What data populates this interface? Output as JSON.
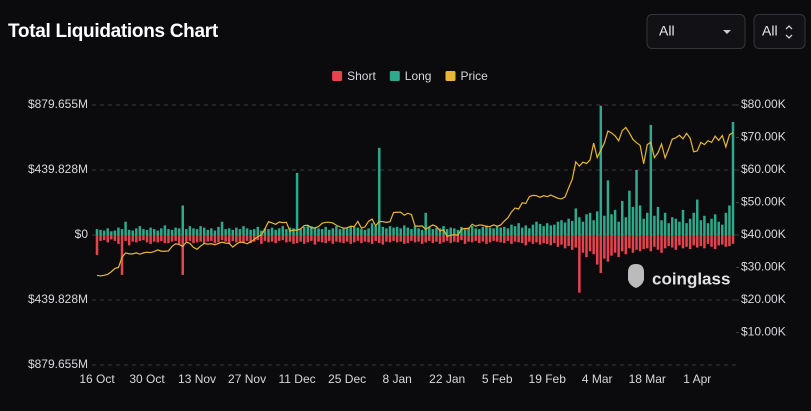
{
  "controls": [
    "All",
    "All"
  ],
  "watermark": "coinglass",
  "chart_data": {
    "type": "bar",
    "title": "Total Liquidations Chart",
    "categories": [
      "16 Oct",
      null,
      null,
      null,
      null,
      null,
      null,
      null,
      null,
      null,
      null,
      null,
      null,
      null,
      "30 Oct",
      null,
      null,
      null,
      null,
      null,
      null,
      null,
      null,
      null,
      null,
      null,
      null,
      null,
      "13 Nov",
      null,
      null,
      null,
      null,
      null,
      null,
      null,
      null,
      null,
      null,
      null,
      null,
      null,
      "27 Nov",
      null,
      null,
      null,
      null,
      null,
      null,
      null,
      null,
      null,
      null,
      null,
      null,
      null,
      "11 Dec",
      null,
      null,
      null,
      null,
      null,
      null,
      null,
      null,
      null,
      null,
      null,
      null,
      null,
      "25 Dec",
      null,
      null,
      null,
      null,
      null,
      null,
      null,
      null,
      null,
      null,
      null,
      null,
      null,
      "8 Jan",
      null,
      null,
      null,
      null,
      null,
      null,
      null,
      null,
      null,
      null,
      null,
      null,
      null,
      "22 Jan",
      null,
      null,
      null,
      null,
      null,
      null,
      null,
      null,
      null,
      null,
      null,
      null,
      null,
      "5 Feb",
      null,
      null,
      null,
      null,
      null,
      null,
      null,
      null,
      null,
      null,
      null,
      null,
      null,
      "19 Feb",
      null,
      null,
      null,
      null,
      null,
      null,
      null,
      null,
      null,
      null,
      null,
      null,
      null,
      "4 Mar",
      null,
      null,
      null,
      null,
      null,
      null,
      null,
      null,
      null,
      null,
      null,
      null,
      null,
      "18 Mar",
      null,
      null,
      null,
      null,
      null,
      null,
      null,
      null,
      null,
      null,
      null,
      null,
      null,
      "1 Apr",
      null,
      null,
      null,
      null,
      null,
      null,
      null,
      null,
      null,
      null
    ],
    "series": [
      {
        "name": "Short",
        "color": "#e5444e",
        "values": [
          -135,
          -40,
          -35,
          -50,
          -30,
          -40,
          -60,
          -270,
          -40,
          -70,
          -45,
          -50,
          -40,
          -35,
          -50,
          -60,
          -45,
          -50,
          -40,
          -55,
          -55,
          -45,
          -40,
          -60,
          -270,
          -45,
          -40,
          -55,
          -50,
          -45,
          -60,
          -45,
          -40,
          -55,
          -50,
          -35,
          -45,
          -60,
          -40,
          -50,
          -45,
          -55,
          -40,
          -55,
          -45,
          -35,
          -60,
          -40,
          -50,
          -45,
          -55,
          -40,
          -35,
          -50,
          -45,
          -60,
          -55,
          -45,
          -60,
          -50,
          -40,
          -65,
          -45,
          -50,
          -55,
          -40,
          -60,
          -45,
          -50,
          -55,
          -45,
          -60,
          -50,
          -40,
          -55,
          -45,
          -50,
          -60,
          -40,
          -55,
          -65,
          -45,
          -50,
          -40,
          -50,
          -45,
          -60,
          -55,
          -40,
          -50,
          -45,
          -60,
          -50,
          -40,
          -55,
          -45,
          -60,
          -50,
          -40,
          -55,
          -45,
          -50,
          -35,
          -60,
          -45,
          -50,
          -40,
          -55,
          -45,
          -60,
          -50,
          -40,
          -45,
          -50,
          -55,
          -40,
          -60,
          -45,
          -50,
          -55,
          -70,
          -45,
          -60,
          -50,
          -65,
          -55,
          -60,
          -70,
          -55,
          -80,
          -65,
          -90,
          -75,
          -100,
          -85,
          -390,
          -120,
          -150,
          -110,
          -130,
          -200,
          -257,
          -160,
          -180,
          -140,
          -120,
          -150,
          -110,
          -130,
          -90,
          -120,
          -100,
          -110,
          -95,
          -90,
          -110,
          -80,
          -100,
          -120,
          -90,
          -75,
          -85,
          -100,
          -70,
          -90,
          -80,
          -95,
          -70,
          -85,
          -75,
          -90,
          -60,
          -80,
          -95,
          -70,
          -65,
          -80,
          -75,
          -60
        ]
      },
      {
        "name": "Long",
        "color": "#2fa98b",
        "values": [
          40,
          35,
          30,
          45,
          25,
          30,
          50,
          40,
          90,
          35,
          30,
          45,
          60,
          40,
          35,
          50,
          40,
          30,
          45,
          65,
          40,
          35,
          50,
          45,
          200,
          40,
          60,
          45,
          40,
          60,
          50,
          35,
          45,
          30,
          55,
          90,
          40,
          45,
          35,
          50,
          40,
          60,
          45,
          35,
          40,
          55,
          30,
          45,
          40,
          50,
          35,
          45,
          60,
          40,
          50,
          45,
          420,
          40,
          55,
          65,
          60,
          50,
          45,
          40,
          55,
          35,
          45,
          60,
          40,
          50,
          45,
          60,
          55,
          50,
          40,
          35,
          45,
          80,
          60,
          590,
          55,
          45,
          60,
          50,
          55,
          45,
          65,
          50,
          40,
          60,
          45,
          35,
          150,
          55,
          40,
          50,
          45,
          60,
          40,
          50,
          45,
          35,
          55,
          40,
          50,
          60,
          45,
          40,
          55,
          65,
          50,
          45,
          60,
          50,
          55,
          45,
          70,
          60,
          80,
          50,
          65,
          45,
          70,
          90,
          75,
          60,
          80,
          65,
          70,
          90,
          100,
          85,
          110,
          95,
          180,
          120,
          90,
          140,
          150,
          100,
          160,
          875,
          130,
          370,
          140,
          170,
          90,
          230,
          120,
          300,
          190,
          440,
          200,
          110,
          150,
          745,
          130,
          190,
          100,
          150,
          80,
          120,
          110,
          90,
          170,
          80,
          110,
          150,
          240,
          100,
          130,
          80,
          110,
          140,
          90,
          70,
          150,
          200,
          765
        ]
      },
      {
        "name": "Price",
        "color": "#e9b731",
        "type": "line",
        "axis": "y2",
        "values": [
          27.6,
          27.4,
          27.6,
          27.9,
          28.7,
          29.7,
          30.0,
          33.1,
          34.5,
          34.2,
          34.2,
          34.5,
          34.1,
          34.5,
          34.7,
          34.6,
          34.9,
          35.4,
          35.0,
          35.0,
          35.1,
          36.5,
          37.3,
          37.1,
          36.5,
          37.8,
          37.4,
          36.2,
          35.6,
          36.6,
          37.4,
          37.2,
          37.3,
          37.0,
          37.4,
          37.8,
          37.5,
          37.4,
          36.3,
          37.2,
          37.8,
          37.7,
          37.3,
          37.9,
          38.6,
          39.5,
          40.0,
          41.9,
          44.1,
          43.7,
          43.3,
          44.0,
          43.8,
          43.9,
          41.2,
          41.5,
          41.5,
          41.9,
          42.9,
          43.0,
          42.2,
          42.2,
          42.6,
          43.6,
          43.9,
          43.9,
          43.7,
          43.0,
          42.5,
          42.1,
          42.2,
          42.7,
          42.6,
          44.2,
          42.1,
          42.5,
          44.2,
          44.9,
          42.8,
          44.2,
          44.1,
          43.9,
          44.1,
          46.9,
          47.0,
          47.0,
          46.1,
          46.7,
          46.3,
          42.8,
          42.7,
          42.8,
          41.7,
          42.5,
          43.1,
          42.6,
          41.3,
          41.6,
          39.6,
          39.9,
          40.1,
          39.9,
          41.8,
          42.0,
          42.0,
          43.3,
          42.7,
          43.1,
          43.0,
          42.6,
          42.6,
          43.1,
          42.7,
          43.1,
          44.3,
          45.3,
          47.1,
          48.3,
          48.0,
          49.9,
          49.7,
          51.8,
          52.2,
          52.1,
          51.6,
          52.1,
          51.8,
          52.3,
          51.8,
          51.3,
          51.1,
          51.7,
          54.5,
          57.1,
          62.5,
          61.2,
          62.4,
          62.0,
          63.1,
          68.3,
          63.8,
          66.1,
          68.3,
          72.0,
          71.4,
          70.5,
          69.0,
          72.1,
          73.1,
          71.4,
          69.4,
          68.4,
          67.6,
          61.9,
          67.8,
          68.5,
          63.8,
          65.3,
          68.0,
          63.7,
          66.5,
          69.5,
          69.9,
          70.7,
          69.6,
          71.3,
          69.8,
          65.6,
          65.9,
          68.5,
          67.8,
          69.0,
          68.5,
          70.4,
          69.1,
          70.6,
          67.1,
          70.8,
          71.5
        ]
      }
    ],
    "ylim": [
      -879.655,
      879.655
    ],
    "yticks": [
      {
        "value": 879.655,
        "label": "$879.655M"
      },
      {
        "value": 439.828,
        "label": "$439.828M"
      },
      {
        "value": 0,
        "label": "$0"
      },
      {
        "value": -439.828,
        "label": "$439.828M"
      },
      {
        "value": -879.655,
        "label": "$879.655M"
      }
    ],
    "y2lim": [
      0,
      80
    ],
    "y2ticks": [
      {
        "value": 80,
        "label": "$80.00K"
      },
      {
        "value": 70,
        "label": "$70.00K"
      },
      {
        "value": 60,
        "label": "$60.00K"
      },
      {
        "value": 50,
        "label": "$50.00K"
      },
      {
        "value": 40,
        "label": "$40.00K"
      },
      {
        "value": 30,
        "label": "$30.00K"
      },
      {
        "value": 20,
        "label": "$20.00K"
      },
      {
        "value": 10,
        "label": "$10.00K"
      }
    ],
    "grid": true,
    "legend": "top"
  }
}
